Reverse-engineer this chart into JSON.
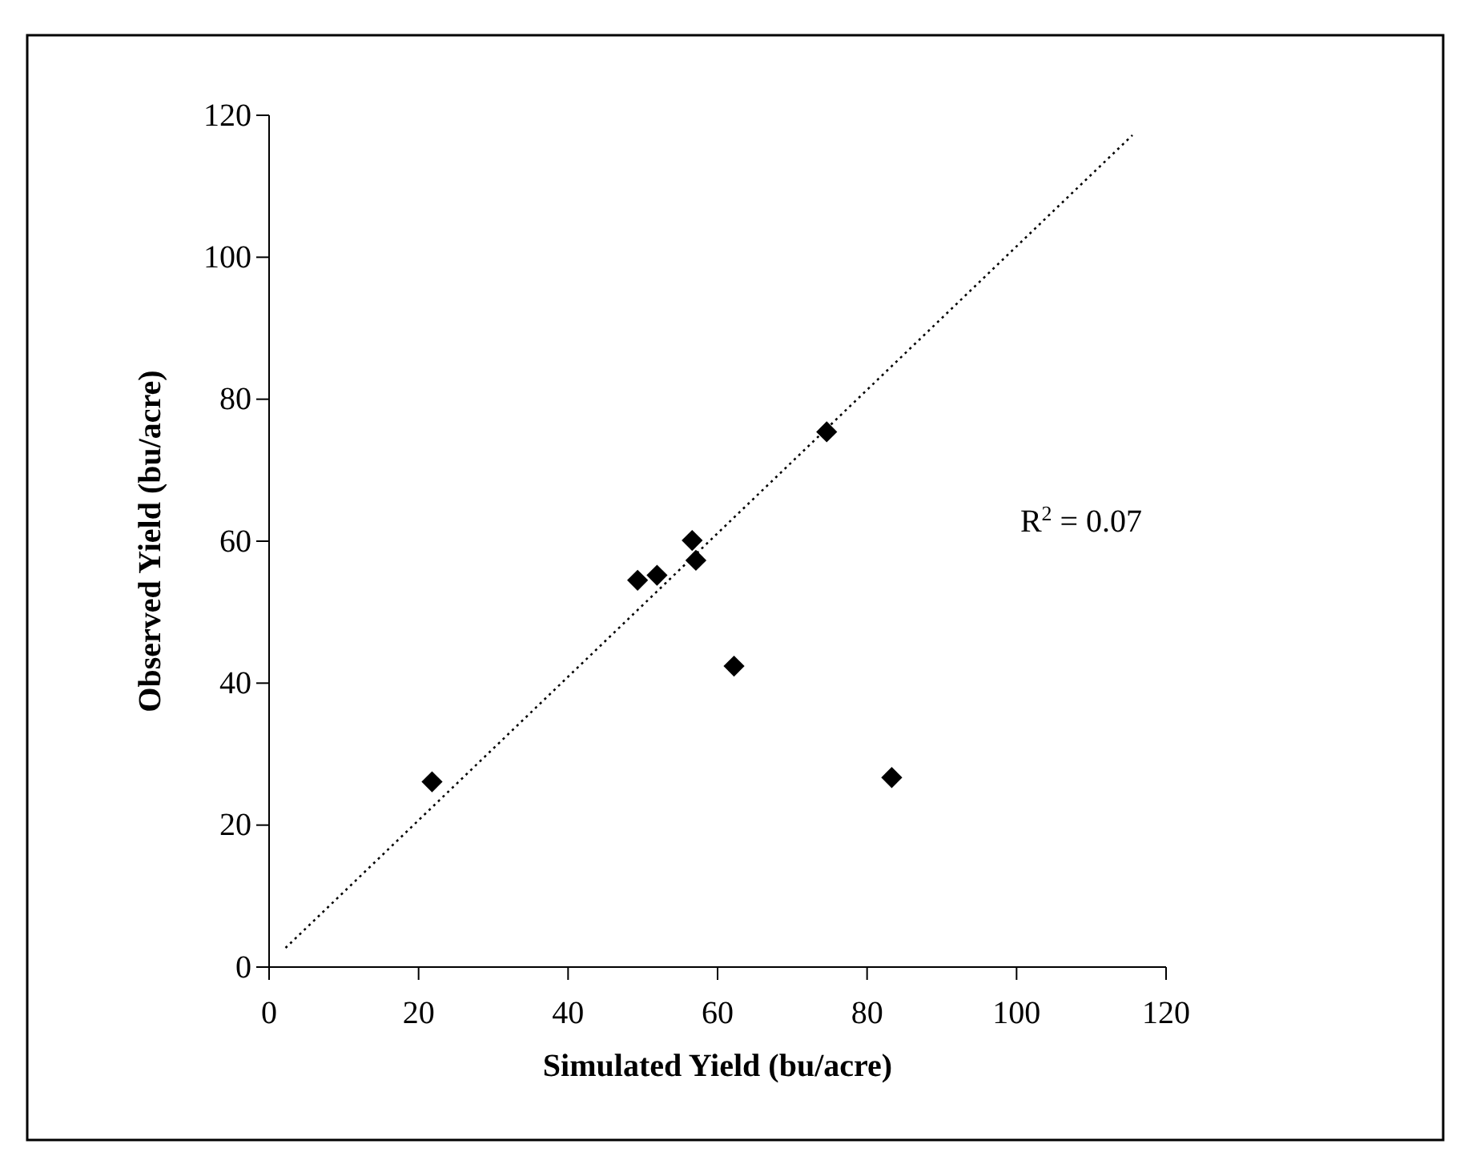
{
  "chart_data": {
    "type": "scatter",
    "xlabel": "Simulated Yield (bu/acre)",
    "ylabel": "Observed Yield (bu/acre)",
    "xlim": [
      0,
      120
    ],
    "ylim": [
      0,
      120
    ],
    "xticks": [
      0,
      20,
      40,
      60,
      80,
      100,
      120
    ],
    "yticks": [
      0,
      20,
      40,
      60,
      80,
      100,
      120
    ],
    "grid": false,
    "marker": "diamond",
    "series": [
      {
        "color": "#000000",
        "x": [
          21.8,
          49.3,
          51.9,
          56.6,
          57.1,
          62.2,
          74.6,
          83.3
        ],
        "values": [
          26.1,
          54.5,
          55.2,
          60.1,
          57.3,
          42.4,
          75.4,
          26.7
        ]
      },
      {
        "type": "line",
        "color": "#000000",
        "line_style": "dotted",
        "marker": "none",
        "x": [
          2.2,
          115.5
        ],
        "values": [
          2.7,
          117.2
        ]
      }
    ],
    "annotations": [
      "R$^{2}$ = 0.07"
    ]
  }
}
